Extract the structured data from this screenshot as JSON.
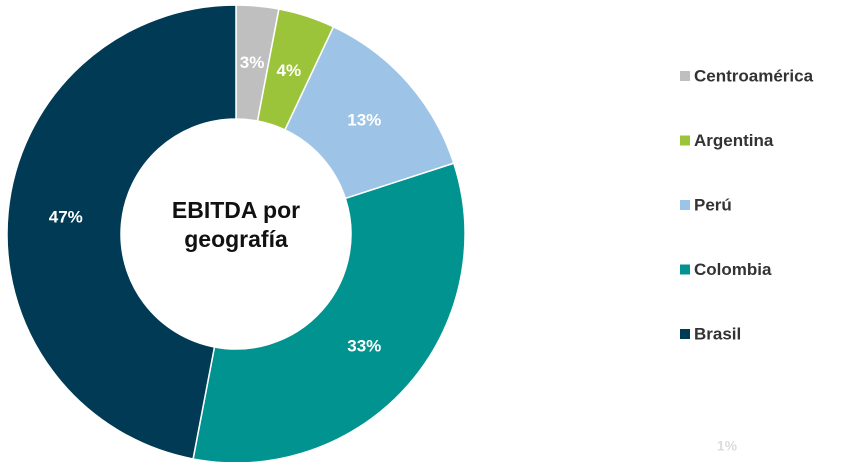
{
  "chart_data": {
    "type": "donut",
    "title": "EBITDA por geografía",
    "categories": [
      "Centroamérica",
      "Argentina",
      "Perú",
      "Colombia",
      "Brasil"
    ],
    "values": [
      3,
      4,
      13,
      33,
      47
    ],
    "value_labels": [
      "3%",
      "4%",
      "13%",
      "33%",
      "47%"
    ],
    "colors": [
      "#bfbfbf",
      "#9bc43a",
      "#9dc3e6",
      "#00938f",
      "#003a54"
    ],
    "legend": "right",
    "annotation": "1%"
  }
}
